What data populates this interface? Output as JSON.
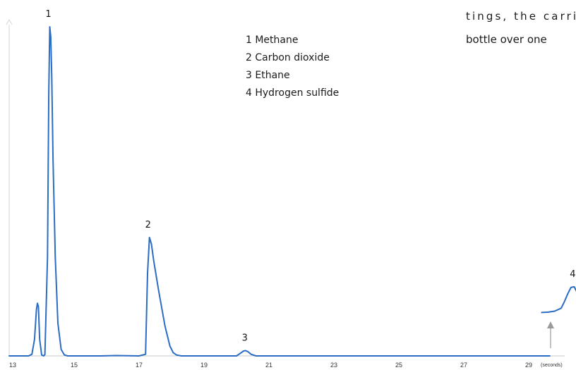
{
  "page_text": [
    "tings, the carri",
    "bottle over one"
  ],
  "legend": [
    "1  Methane",
    "2  Carbon dioxide",
    "3  Ethane",
    "4  Hydrogen sulfide"
  ],
  "chart_data": {
    "type": "line",
    "xlabel": "",
    "ylabel": "",
    "x_unit": "(seconds)",
    "xlim": [
      13,
      30.8
    ],
    "ylim": [
      0,
      100
    ],
    "x_ticks": [
      13,
      15,
      17,
      19,
      21,
      23,
      25,
      27,
      29
    ],
    "line_color": "#2b6cc4",
    "series": [
      {
        "x": [
          13.0,
          13.6,
          13.7,
          13.78,
          13.84,
          13.87,
          13.9,
          13.94,
          14.0,
          14.06,
          14.1,
          14.18,
          14.22,
          14.25,
          14.28,
          14.31,
          14.35,
          14.42,
          14.5,
          14.6,
          14.7,
          14.8,
          15.0,
          15.8,
          16.3,
          17.0,
          17.2,
          17.26,
          17.32,
          17.38,
          17.45,
          17.6,
          17.8,
          17.95,
          18.05,
          18.15,
          18.3,
          18.6,
          20.0,
          20.12,
          20.22,
          20.28,
          20.35,
          20.45,
          20.6,
          29.65
        ],
        "y": [
          0,
          0,
          0.5,
          5,
          14,
          16,
          15,
          5,
          0.3,
          0,
          0.4,
          30,
          80,
          100,
          97,
          85,
          60,
          30,
          10,
          2,
          0.3,
          0,
          0,
          0,
          0.1,
          0,
          0.5,
          25,
          36,
          34,
          29,
          20,
          9,
          3,
          1,
          0.3,
          0,
          0,
          0,
          0.8,
          1.5,
          1.6,
          1.3,
          0.5,
          0,
          0
        ]
      },
      {
        "name": "",
        "x": [
          29.4,
          29.6,
          29.8,
          30.0,
          30.1,
          30.2,
          30.3,
          30.4,
          30.48,
          30.55,
          30.62,
          30.7,
          30.8
        ],
        "y": [
          13.2,
          13.3,
          13.6,
          14.5,
          16.5,
          18.8,
          20.8,
          21.0,
          19.5,
          16.5,
          13.0,
          10.5,
          9.5
        ]
      }
    ],
    "annotations": [
      {
        "label": "1",
        "x": 14.25
      },
      {
        "label": "2",
        "x": 17.32
      },
      {
        "label": "3",
        "x": 20.3
      },
      {
        "label": "4",
        "x": 30.4
      }
    ]
  }
}
